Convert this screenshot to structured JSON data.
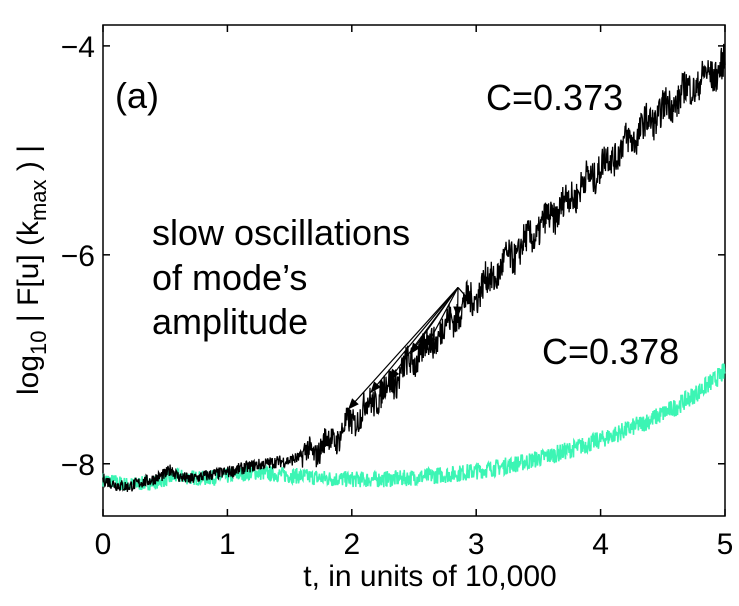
{
  "chart_data": {
    "type": "line",
    "panel_label": "(a)",
    "xlabel": "t,   in units of 10,000",
    "ylabel": {
      "prefix": "log",
      "prefix_sub": "10",
      "middle": " | F[u] (k",
      "middle_sub": "max",
      "suffix": " ) |"
    },
    "xlim": [
      0,
      5
    ],
    "ylim": [
      -8.5,
      -3.8
    ],
    "xticks": [
      0,
      1,
      2,
      3,
      4,
      5
    ],
    "xtick_labels": [
      "0",
      "1",
      "2",
      "3",
      "4",
      "5"
    ],
    "yticks": [
      -8,
      -6,
      -4
    ],
    "ytick_labels": [
      "−8",
      "−6",
      "−4"
    ],
    "grid": false,
    "series": [
      {
        "name": "C=0.373",
        "color": "#000000",
        "x": [
          0,
          0.1,
          0.2,
          0.3,
          0.4,
          0.5,
          0.55,
          0.6,
          0.7,
          0.8,
          0.9,
          1.0,
          1.1,
          1.2,
          1.3,
          1.4,
          1.5,
          1.6,
          1.7,
          1.8,
          1.9,
          2.0,
          2.1,
          2.2,
          2.3,
          2.4,
          2.5,
          2.6,
          2.7,
          2.8,
          2.9,
          3.0,
          3.1,
          3.2,
          3.3,
          3.4,
          3.5,
          3.6,
          3.7,
          3.8,
          3.9,
          4.0,
          4.1,
          4.2,
          4.3,
          4.4,
          4.5,
          4.6,
          4.7,
          4.8,
          4.9,
          5.0
        ],
        "y": [
          -8.15,
          -8.2,
          -8.22,
          -8.18,
          -8.15,
          -8.1,
          -8.05,
          -8.12,
          -8.15,
          -8.12,
          -8.1,
          -8.08,
          -8.05,
          -8.02,
          -8.0,
          -7.98,
          -7.97,
          -7.93,
          -7.88,
          -7.8,
          -7.72,
          -7.6,
          -7.48,
          -7.36,
          -7.25,
          -7.12,
          -7.0,
          -6.88,
          -6.75,
          -6.62,
          -6.5,
          -6.37,
          -6.25,
          -6.12,
          -6.0,
          -5.88,
          -5.76,
          -5.64,
          -5.52,
          -5.4,
          -5.28,
          -5.16,
          -5.05,
          -4.94,
          -4.83,
          -4.72,
          -4.62,
          -4.52,
          -4.42,
          -4.34,
          -4.26,
          -4.18
        ]
      },
      {
        "name": "C=0.378",
        "color": "#3cf5b4",
        "x": [
          0,
          0.2,
          0.4,
          0.6,
          0.8,
          1.0,
          1.2,
          1.4,
          1.6,
          1.8,
          2.0,
          2.2,
          2.4,
          2.6,
          2.8,
          3.0,
          3.2,
          3.4,
          3.6,
          3.8,
          4.0,
          4.2,
          4.4,
          4.6,
          4.8,
          5.0
        ],
        "y": [
          -8.15,
          -8.2,
          -8.18,
          -8.12,
          -8.14,
          -8.12,
          -8.08,
          -8.1,
          -8.12,
          -8.14,
          -8.15,
          -8.15,
          -8.14,
          -8.12,
          -8.1,
          -8.07,
          -8.03,
          -7.98,
          -7.92,
          -7.85,
          -7.77,
          -7.68,
          -7.58,
          -7.46,
          -7.3,
          -7.12
        ]
      }
    ],
    "annotations": {
      "label_c373": "C=0.373",
      "label_c378": "C=0.378",
      "osc_line1": "slow oscillations",
      "osc_line2": "of mode’s",
      "osc_line3": "amplitude",
      "arrow_targets": [
        {
          "x": 1.97,
          "y": -7.48
        },
        {
          "x": 2.15,
          "y": -7.32
        },
        {
          "x": 2.3,
          "y": -7.2
        },
        {
          "x": 2.47,
          "y": -6.95
        },
        {
          "x": 2.6,
          "y": -6.88
        },
        {
          "x": 2.85,
          "y": -6.6
        },
        {
          "x": 2.97,
          "y": -6.47
        }
      ],
      "arrow_origin": {
        "x": 2.05,
        "y": -6.36
      }
    }
  }
}
